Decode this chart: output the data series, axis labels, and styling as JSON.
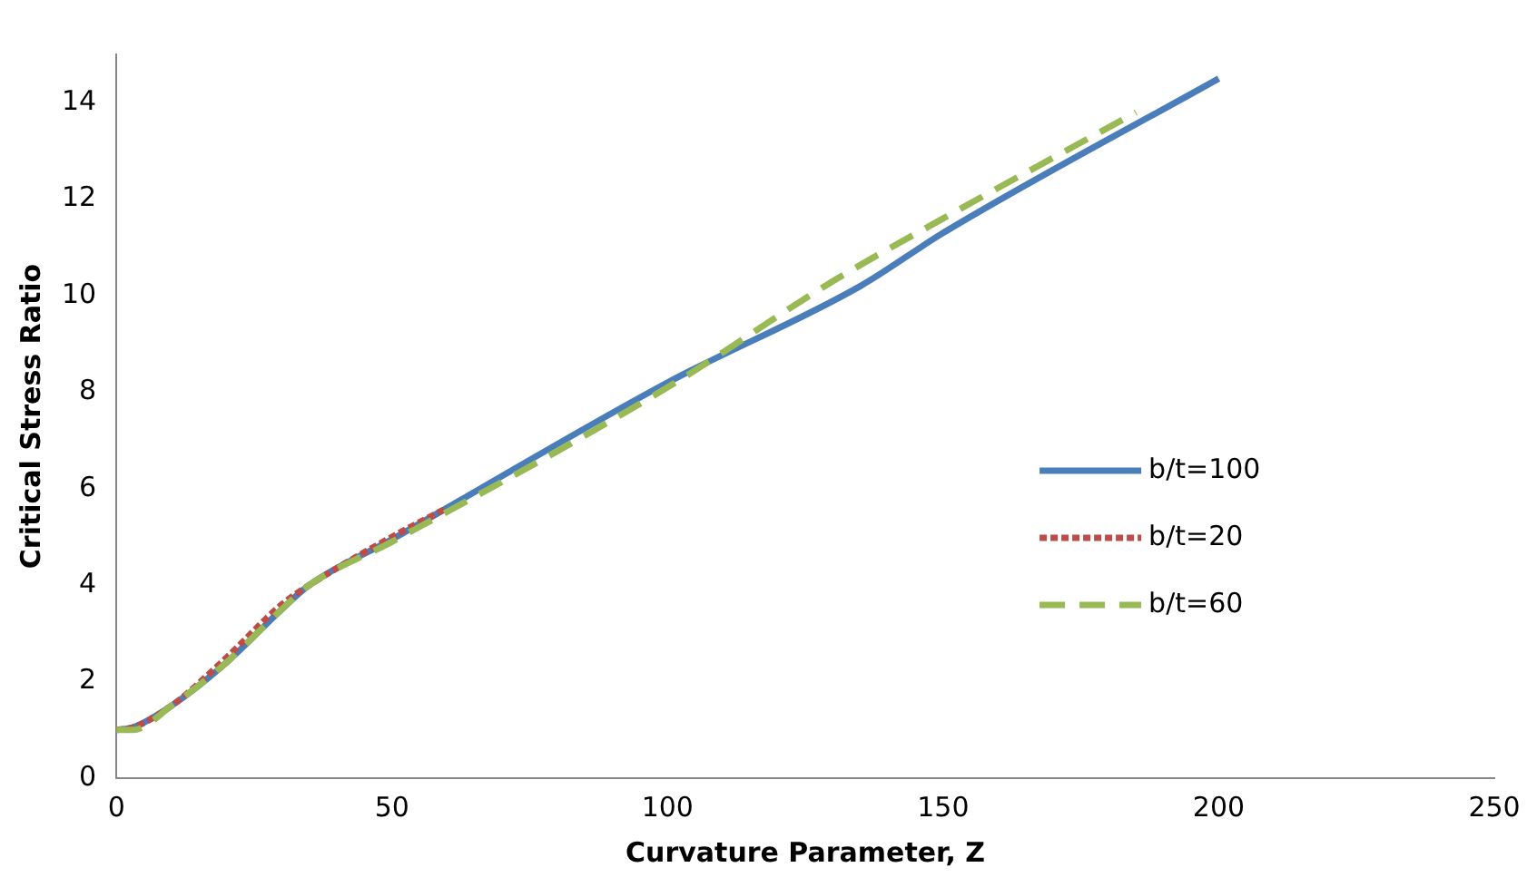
{
  "chart_data": {
    "type": "line",
    "xlabel": "Curvature Parameter, Z",
    "ylabel": "Critical Stress Ratio",
    "xlim": [
      0,
      250
    ],
    "xticks": [
      0,
      50,
      100,
      150,
      200,
      250
    ],
    "ylim": [
      0,
      15
    ],
    "yticks": [
      0,
      2,
      4,
      6,
      8,
      10,
      12,
      14
    ],
    "grid": false,
    "legend": "right",
    "marker": "none",
    "series": [
      {
        "name": "b/t=100",
        "color": "#4a7ebb",
        "line_style": "solid",
        "x": [
          0,
          3,
          10,
          20,
          30,
          35,
          50,
          100,
          135,
          150,
          200
        ],
        "values": [
          1,
          1.05,
          1.5,
          2.4,
          3.5,
          4.0,
          4.95,
          8.2,
          10.2,
          11.3,
          14.5
        ]
      },
      {
        "name": "b/t=20",
        "color": "#be4b48",
        "line_style": "dotted",
        "x": [
          0,
          3,
          10,
          20,
          30,
          35,
          50,
          60
        ],
        "values": [
          1,
          1.05,
          1.5,
          2.5,
          3.6,
          4.0,
          5.0,
          5.6
        ]
      },
      {
        "name": "b/t=60",
        "color": "#98b954",
        "line_style": "dashed",
        "x": [
          0,
          3,
          10,
          20,
          30,
          35,
          50,
          100,
          130,
          150,
          185
        ],
        "values": [
          1,
          1.0,
          1.5,
          2.4,
          3.5,
          4.0,
          4.9,
          8.1,
          10.3,
          11.6,
          13.8
        ]
      }
    ]
  }
}
